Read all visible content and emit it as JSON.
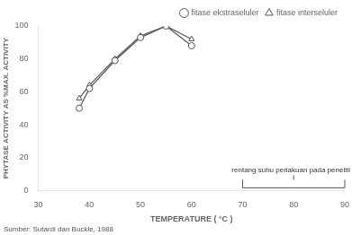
{
  "chart_data": {
    "type": "line",
    "xlabel": "TEMPERATURE ( °C )",
    "ylabel": "PHYTASE ACTIVITY AS %MAX. ACTIVITY",
    "x": [
      38,
      40,
      45,
      50,
      55,
      60
    ],
    "series": [
      {
        "name": "fitase ekstraseluler",
        "color": "#555555",
        "marker": "circle",
        "values": [
          50,
          62,
          79,
          93,
          100,
          88
        ]
      },
      {
        "name": "fitase interseluler",
        "color": "#555555",
        "marker": "triangle",
        "values": [
          56,
          64,
          80,
          94,
          100,
          92
        ]
      }
    ],
    "xlim": [
      30,
      90
    ],
    "ylim": [
      0,
      100
    ],
    "xticks": [
      30,
      40,
      50,
      60,
      70,
      80,
      90
    ],
    "yticks": [
      0,
      20,
      40,
      60,
      80,
      100
    ],
    "grid": false,
    "legend": "upper right",
    "annotations": [
      {
        "text": "rentang suhu perlakuan pada peneliti",
        "x": [
          70,
          90
        ]
      }
    ],
    "source": "Sumber: Sutardi dan Buckle, 1988"
  }
}
